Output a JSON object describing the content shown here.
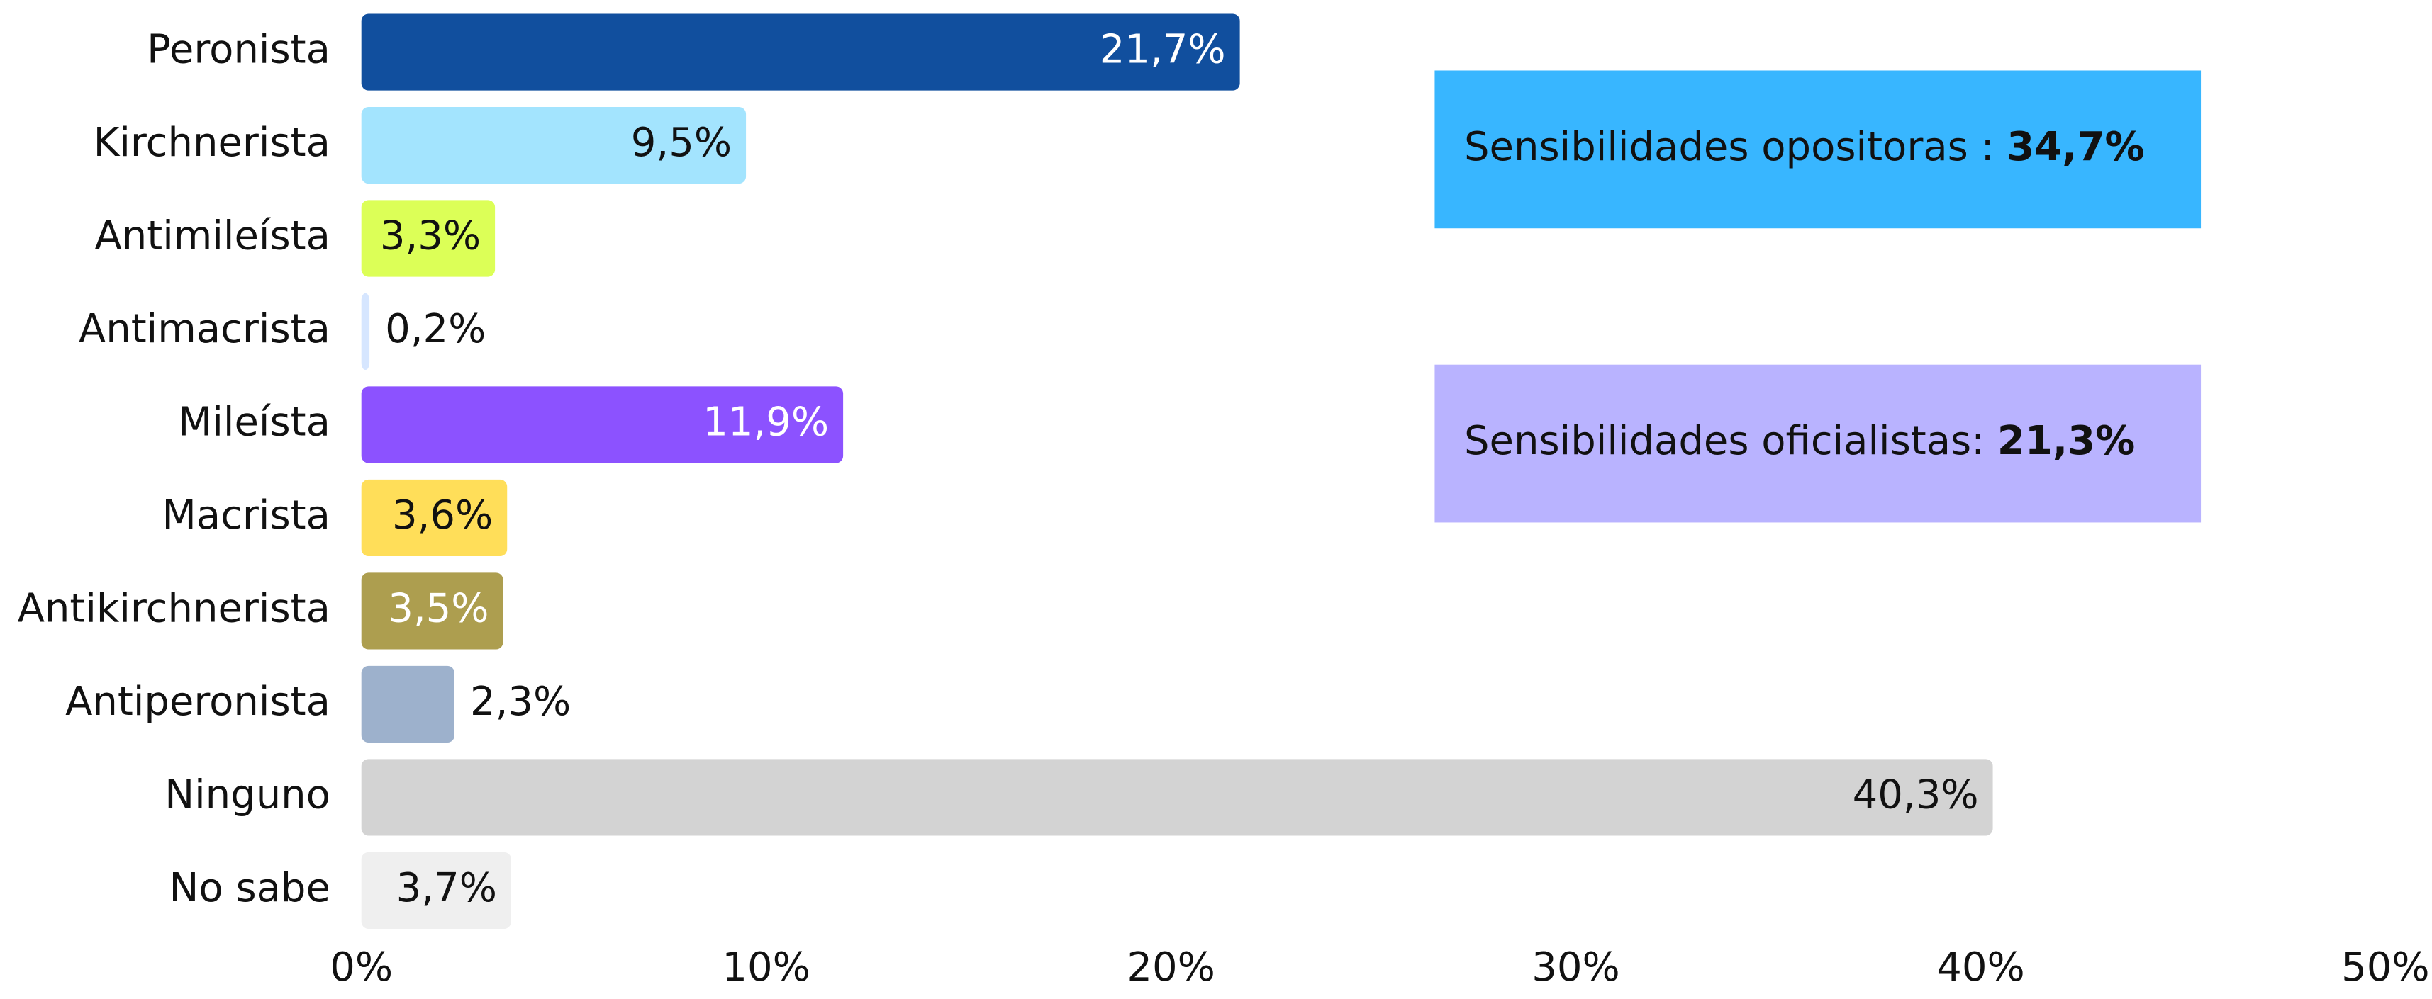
{
  "chart_data": {
    "type": "bar",
    "orientation": "horizontal",
    "categories": [
      "Peronista",
      "Kirchnerista",
      "Antimileísta",
      "Antimacrista",
      "Mileísta",
      "Macrista",
      "Antikirchnerista",
      "Antiperonista",
      "Ninguno",
      "No sabe"
    ],
    "values": [
      21.7,
      9.5,
      3.3,
      0.2,
      11.9,
      3.6,
      3.5,
      2.3,
      40.3,
      3.7
    ],
    "value_labels": [
      "21,7%",
      "9,5%",
      "3,3%",
      "0,2%",
      "11,9%",
      "3,6%",
      "3,5%",
      "2,3%",
      "40,3%",
      "3,7%"
    ],
    "colors": [
      "#114f9e",
      "#a3e4fe",
      "#dcff57",
      "#d6e6ff",
      "#8c52ff",
      "#ffde59",
      "#ad9e4f",
      "#9db1cc",
      "#d3d3d3",
      "#efefef"
    ],
    "xlim": [
      0,
      50
    ],
    "xticks": [
      {
        "value": 0,
        "label": "0%"
      },
      {
        "value": 10,
        "label": "10%"
      },
      {
        "value": 20,
        "label": "20%"
      },
      {
        "value": 30,
        "label": "30%"
      },
      {
        "value": 40,
        "label": "40%"
      },
      {
        "value": 50,
        "label": "50%"
      }
    ],
    "grid": false,
    "annotations": [
      {
        "text": "Sensibilidades opositoras : ",
        "highlight": "34,7%",
        "color": "#38b6ff"
      },
      {
        "text": "Sensibilidades oficialistas: ",
        "highlight": "21,3%",
        "color": "#b9b3ff"
      }
    ]
  }
}
